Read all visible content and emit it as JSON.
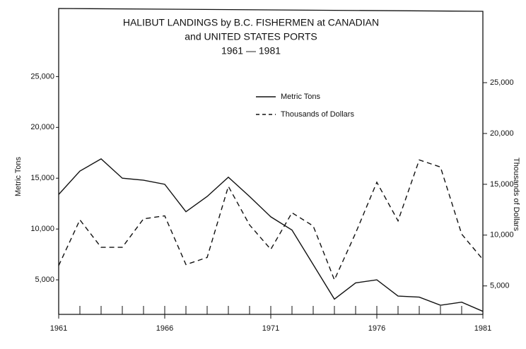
{
  "chart_data": {
    "type": "line",
    "title": [
      "HALIBUT LANDINGS by B.C. FISHERMEN at CANADIAN",
      "and UNITED STATES PORTS",
      "1961 — 1981"
    ],
    "ylabel": "Metric Tons",
    "y2label": "Thousands of Dollars",
    "x": [
      1961,
      1962,
      1963,
      1964,
      1965,
      1966,
      1967,
      1968,
      1969,
      1970,
      1971,
      1972,
      1973,
      1974,
      1975,
      1976,
      1977,
      1978,
      1979,
      1980,
      1981
    ],
    "series": [
      {
        "name": "Metric Tons",
        "color": "#111111",
        "dash": false,
        "values": [
          13400,
          15700,
          16900,
          15000,
          14800,
          14400,
          11700,
          13200,
          15100,
          13200,
          11200,
          9900,
          6500,
          3100,
          4700,
          5000,
          3400,
          3300,
          2500,
          2800,
          1900
        ]
      },
      {
        "name": "Thousands of Dollars",
        "color": "#111111",
        "dash": true,
        "axis": "y2",
        "values": [
          7000,
          11500,
          8800,
          8800,
          11600,
          11900,
          7100,
          7800,
          14800,
          11000,
          8600,
          12200,
          10900,
          5600,
          10200,
          15200,
          11400,
          17400,
          16700,
          10100,
          7600
        ]
      }
    ],
    "xlim": [
      1961,
      1981
    ],
    "xticks": [
      1961,
      1966,
      1971,
      1976,
      1981
    ],
    "ylim": [
      1600,
      31700
    ],
    "yticks": [
      {
        "value": 5000,
        "label": "5,000"
      },
      {
        "value": 10000,
        "label": "10,000"
      },
      {
        "value": 15000,
        "label": "15,000"
      },
      {
        "value": 20000,
        "label": "20,000"
      },
      {
        "value": 25000,
        "label": "25,000"
      }
    ],
    "y2lim": [
      2200,
      32300
    ],
    "y2ticks": [
      {
        "value": 5000,
        "label": "5,000"
      },
      {
        "value": 10000,
        "label": "10,000"
      },
      {
        "value": 15000,
        "label": "15,000"
      },
      {
        "value": 20000,
        "label": "20,000"
      },
      {
        "value": 25000,
        "label": "25,000"
      }
    ],
    "legend": "upper right"
  }
}
